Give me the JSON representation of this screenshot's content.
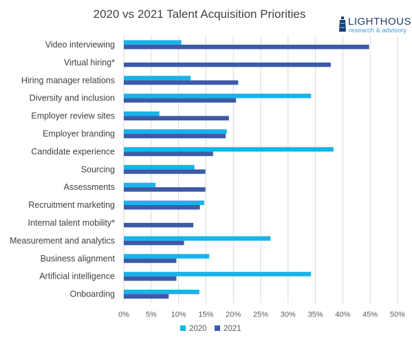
{
  "chart_data": {
    "type": "bar",
    "orientation": "horizontal",
    "title": "2020 vs 2021 Talent Acquisition Priorities",
    "categories": [
      "Video interviewing",
      "Virtual hiring*",
      "Hiring manager relations",
      "Diversity and inclusion",
      "Employer review sites",
      "Employer branding",
      "Candidate experience",
      "Sourcing",
      "Assessments",
      "Recruitment marketing",
      "Internal talent mobility*",
      "Measurement and analytics",
      "Business alignment",
      "Artificial intelligence",
      "Onboarding"
    ],
    "series": [
      {
        "name": "2020",
        "color": "#17b3ea",
        "values": [
          10.5,
          null,
          12.2,
          34.2,
          6.5,
          18.8,
          38.3,
          12.9,
          5.8,
          14.7,
          null,
          26.8,
          15.6,
          34.2,
          13.8
        ]
      },
      {
        "name": "2021",
        "color": "#3d5aa8",
        "values": [
          44.8,
          37.8,
          20.9,
          20.5,
          19.2,
          18.6,
          16.3,
          14.9,
          14.9,
          13.9,
          12.7,
          11.0,
          9.6,
          9.6,
          8.2
        ]
      }
    ],
    "x_ticks": [
      "0%",
      "5%",
      "10%",
      "15%",
      "20%",
      "25%",
      "30%",
      "35%",
      "40%",
      "45%",
      "50%"
    ],
    "xlim": [
      0,
      50
    ],
    "grid": true,
    "legend_position": "bottom"
  },
  "logo": {
    "name": "LIGHTHOUSE",
    "tagline": "research & advisory",
    "icon": "lighthouse-icon"
  }
}
